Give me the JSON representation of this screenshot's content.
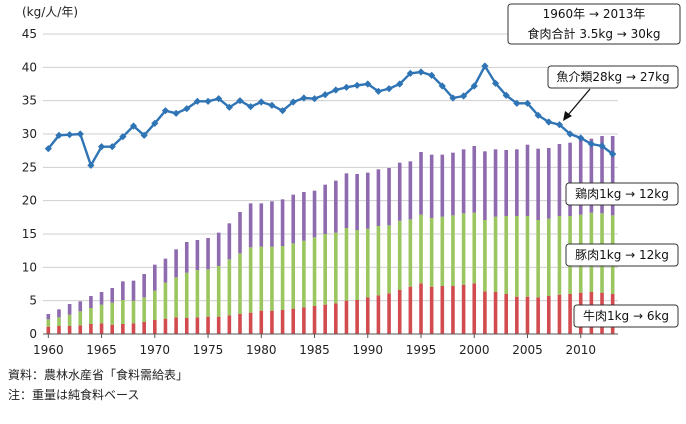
{
  "chart_data": {
    "type": "bar",
    "ylabel": "(kg/人/年)",
    "ylim": [
      0,
      45
    ],
    "yticks": [
      0,
      5,
      10,
      15,
      20,
      25,
      30,
      35,
      40,
      45
    ],
    "xticks": [
      1960,
      1965,
      1970,
      1975,
      1980,
      1985,
      1990,
      1995,
      2000,
      2005,
      2010
    ],
    "grid": true,
    "x": [
      1960,
      1961,
      1962,
      1963,
      1964,
      1965,
      1966,
      1967,
      1968,
      1969,
      1970,
      1971,
      1972,
      1973,
      1974,
      1975,
      1976,
      1977,
      1978,
      1979,
      1980,
      1981,
      1982,
      1983,
      1984,
      1985,
      1986,
      1987,
      1988,
      1989,
      1990,
      1991,
      1992,
      1993,
      1994,
      1995,
      1996,
      1997,
      1998,
      1999,
      2000,
      2001,
      2002,
      2003,
      2004,
      2005,
      2006,
      2007,
      2008,
      2009,
      2010,
      2011,
      2012,
      2013
    ],
    "series": [
      {
        "name": "牛肉",
        "kind": "bar",
        "color": "#d24b4f",
        "values": [
          1.1,
          1.2,
          1.2,
          1.3,
          1.5,
          1.6,
          1.4,
          1.5,
          1.6,
          1.8,
          2.1,
          2.3,
          2.5,
          2.4,
          2.5,
          2.6,
          2.6,
          2.8,
          3.0,
          3.2,
          3.5,
          3.5,
          3.6,
          3.8,
          4.0,
          4.2,
          4.4,
          4.6,
          5.0,
          5.1,
          5.5,
          5.8,
          6.1,
          6.6,
          7.1,
          7.6,
          7.1,
          7.2,
          7.2,
          7.4,
          7.6,
          6.4,
          6.3,
          6.0,
          5.6,
          5.6,
          5.5,
          5.7,
          5.9,
          6.0,
          6.2,
          6.3,
          6.2,
          6.0
        ]
      },
      {
        "name": "豚肉",
        "kind": "bar",
        "color": "#9bc55f",
        "values": [
          1.1,
          1.3,
          1.7,
          2.1,
          2.4,
          2.8,
          3.3,
          3.6,
          3.4,
          3.7,
          4.4,
          5.4,
          6.0,
          6.8,
          7.1,
          7.1,
          7.6,
          8.4,
          9.1,
          9.8,
          9.6,
          9.6,
          9.6,
          9.8,
          10.0,
          10.3,
          10.6,
          10.6,
          10.9,
          10.5,
          10.3,
          10.4,
          10.2,
          10.4,
          10.1,
          10.3,
          10.3,
          10.4,
          10.6,
          10.7,
          10.6,
          10.7,
          11.3,
          11.7,
          12.1,
          12.1,
          11.6,
          11.6,
          11.8,
          11.7,
          11.7,
          11.9,
          11.9,
          11.8
        ]
      },
      {
        "name": "鶏肉",
        "kind": "bar",
        "color": "#8e6aaf",
        "values": [
          0.8,
          1.2,
          1.6,
          1.5,
          1.8,
          1.9,
          2.2,
          2.8,
          3.0,
          3.5,
          3.9,
          3.6,
          4.2,
          4.6,
          4.5,
          4.7,
          5.0,
          5.4,
          6.2,
          6.6,
          6.5,
          6.8,
          7.0,
          7.3,
          7.3,
          7.0,
          7.4,
          7.8,
          8.2,
          8.4,
          8.4,
          8.5,
          8.6,
          8.7,
          8.7,
          9.4,
          9.5,
          9.3,
          9.4,
          9.6,
          10.0,
          10.3,
          10.1,
          9.9,
          10.0,
          10.7,
          10.7,
          10.6,
          10.8,
          11.0,
          11.2,
          11.1,
          11.6,
          11.9
        ]
      },
      {
        "name": "魚介類",
        "kind": "line",
        "color": "#2f74b5",
        "values": [
          27.8,
          29.8,
          29.9,
          30.0,
          25.3,
          28.1,
          28.1,
          29.6,
          31.2,
          29.8,
          31.6,
          33.5,
          33.1,
          33.8,
          34.9,
          34.9,
          35.3,
          34.0,
          35.0,
          34.1,
          34.8,
          34.3,
          33.5,
          34.8,
          35.4,
          35.3,
          35.9,
          36.6,
          37.0,
          37.3,
          37.5,
          36.4,
          36.8,
          37.5,
          39.1,
          39.3,
          38.8,
          37.2,
          35.4,
          35.7,
          37.2,
          40.2,
          37.6,
          35.8,
          34.6,
          34.6,
          32.8,
          31.8,
          31.4,
          30.0,
          29.4,
          28.5,
          28.2,
          27.0
        ]
      }
    ],
    "annotations": [
      {
        "key": "summary_line1",
        "text": "1960年 → 2013年"
      },
      {
        "key": "summary_line2",
        "text": "食肉合計 3.5kg → 30kg"
      },
      {
        "key": "fish",
        "text": "魚介類28kg → 27kg"
      },
      {
        "key": "chicken",
        "text": "鶏肉1kg → 12kg"
      },
      {
        "key": "pork",
        "text": "豚肉1kg → 12kg"
      },
      {
        "key": "beef",
        "text": "牛肉1kg → 6kg"
      }
    ]
  },
  "notes": {
    "source": "資料：農林水産省「食料需給表」",
    "weight": "注：重量は純食料ベース"
  }
}
